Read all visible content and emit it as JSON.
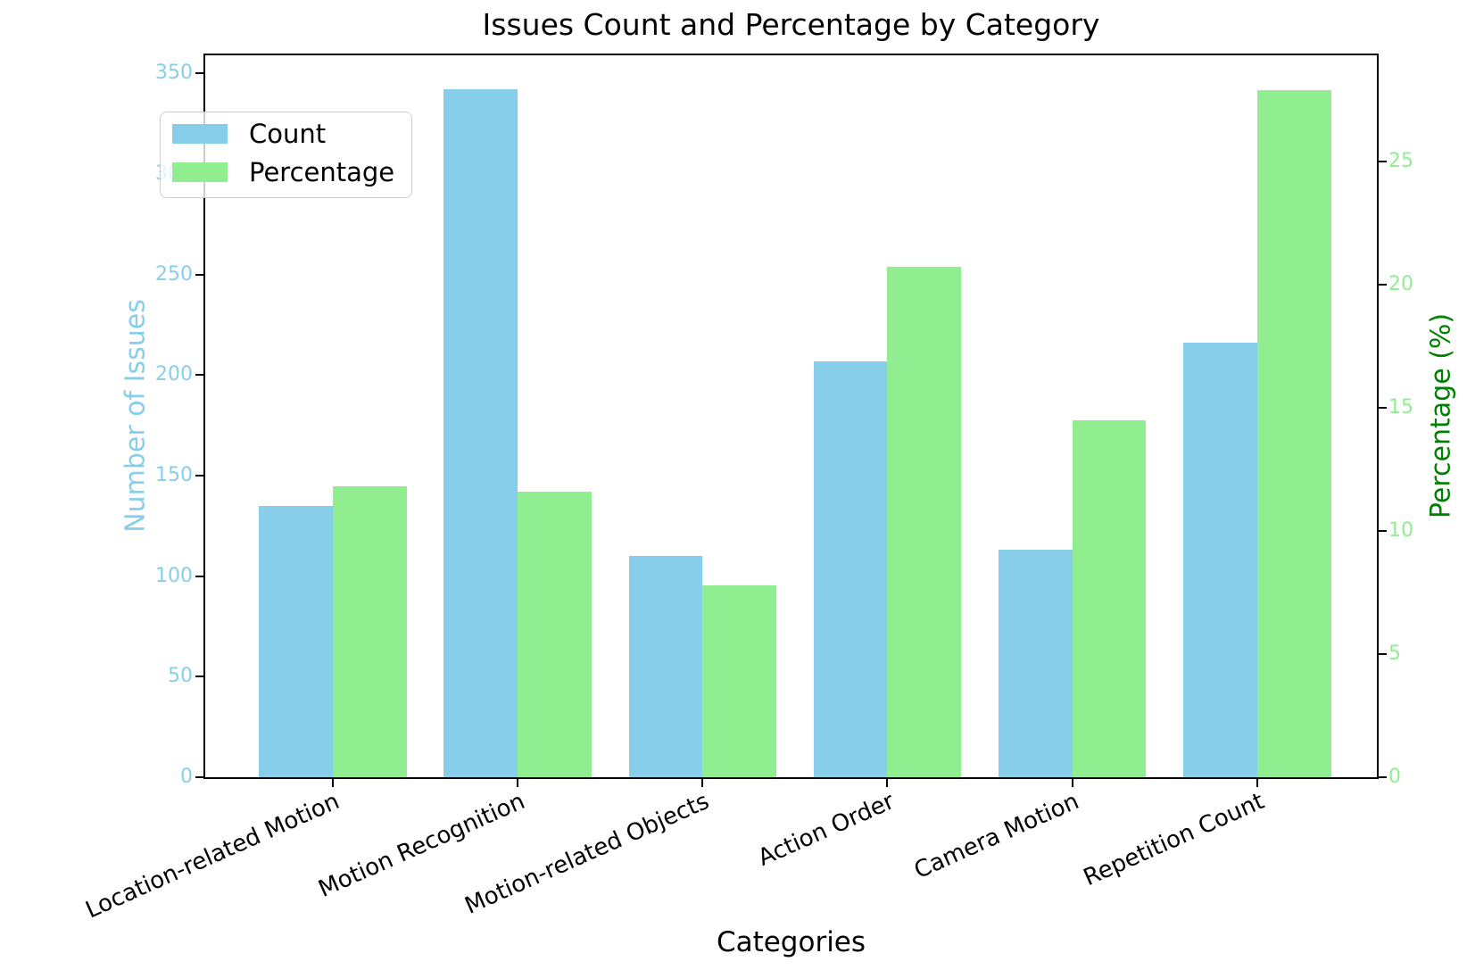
{
  "title": "Issues Count and Percentage by Category",
  "axes": {
    "x_label": "Categories",
    "y_left_label": "Number of Issues",
    "y_right_label": "Percentage (%)",
    "y_left_tick_color": "#87CEEB",
    "y_right_tick_color": "#90EE90",
    "y_right_label_color": "#008000"
  },
  "legend": {
    "items": [
      {
        "label": "Count",
        "color": "#87CEEB"
      },
      {
        "label": "Percentage",
        "color": "#90EE90"
      }
    ]
  },
  "chart_data": {
    "type": "bar",
    "title": "Issues Count and Percentage by Category",
    "xlabel": "Categories",
    "categories": [
      "Location-related Motion",
      "Motion Recognition",
      "Motion-related Objects",
      "Action Order",
      "Camera Motion",
      "Repetition Count"
    ],
    "series": [
      {
        "name": "Count",
        "axis": "left",
        "color": "#87CEEB",
        "values": [
          135,
          342,
          110,
          207,
          113,
          216
        ]
      },
      {
        "name": "Percentage",
        "axis": "right",
        "color": "#90EE90",
        "values": [
          11.8,
          11.6,
          7.8,
          20.7,
          14.5,
          27.9
        ]
      }
    ],
    "left_axis": {
      "label": "Number of Issues",
      "ticks": [
        0,
        50,
        100,
        150,
        200,
        250,
        300,
        350
      ],
      "range": [
        0,
        359
      ]
    },
    "right_axis": {
      "label": "Percentage (%)",
      "ticks": [
        0,
        5,
        10,
        15,
        20,
        25
      ],
      "range": [
        0,
        29.3
      ]
    },
    "legend_position": "upper left",
    "grid": false,
    "bar_width_fraction": 0.4
  }
}
